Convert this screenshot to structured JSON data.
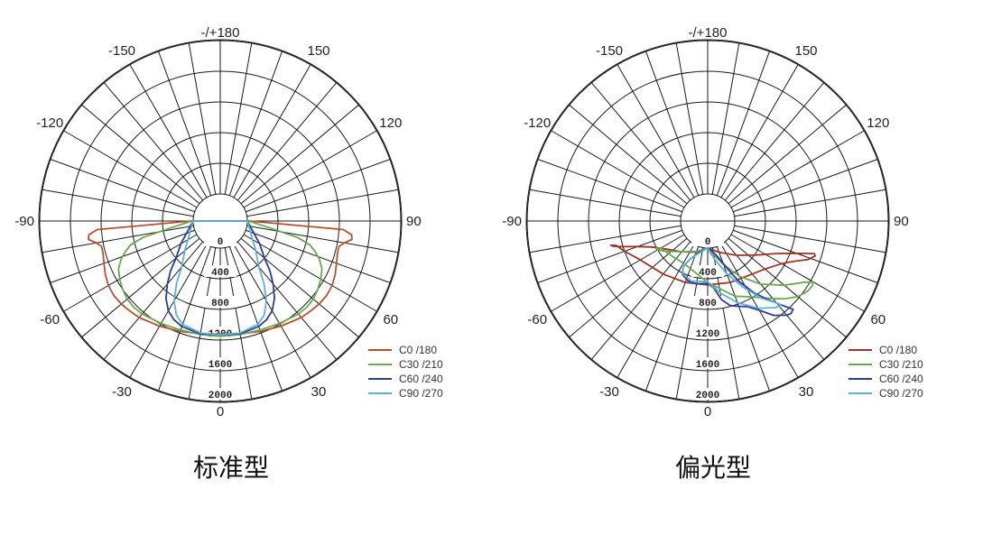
{
  "chart_data": [
    {
      "type": "polar",
      "title": "标准型",
      "angle_labels": [
        {
          "angle": 0,
          "text": "0"
        },
        {
          "angle": 30,
          "text": "30"
        },
        {
          "angle": 60,
          "text": "60"
        },
        {
          "angle": 90,
          "text": "90"
        },
        {
          "angle": 120,
          "text": "120"
        },
        {
          "angle": 150,
          "text": "150"
        },
        {
          "angle": 180,
          "text": "-/+180"
        },
        {
          "angle": -30,
          "text": "-30"
        },
        {
          "angle": -60,
          "text": "-60"
        },
        {
          "angle": -90,
          "text": "-90"
        },
        {
          "angle": -120,
          "text": "-120"
        },
        {
          "angle": -150,
          "text": "-150"
        }
      ],
      "radial_labels": [
        "0",
        "400",
        "800",
        "1200",
        "1600",
        "2000"
      ],
      "radial_max": 2000,
      "series": [
        {
          "name": "C0   /180",
          "color": "#b5532f",
          "points": [
            [
              -90,
              30
            ],
            [
              -86,
              1255
            ],
            [
              -84,
              1370
            ],
            [
              -82,
              1380
            ],
            [
              -80,
              1290
            ],
            [
              -78,
              1230
            ],
            [
              -75,
              1230
            ],
            [
              -70,
              1260
            ],
            [
              -65,
              1300
            ],
            [
              -60,
              1330
            ],
            [
              -55,
              1340
            ],
            [
              -50,
              1330
            ],
            [
              -45,
              1310
            ],
            [
              -40,
              1290
            ],
            [
              -30,
              1230
            ],
            [
              -20,
              1180
            ],
            [
              -10,
              1140
            ],
            [
              0,
              1120
            ],
            [
              10,
              1140
            ],
            [
              20,
              1180
            ],
            [
              30,
              1230
            ],
            [
              40,
              1290
            ],
            [
              45,
              1310
            ],
            [
              50,
              1330
            ],
            [
              55,
              1340
            ],
            [
              60,
              1330
            ],
            [
              65,
              1300
            ],
            [
              70,
              1260
            ],
            [
              75,
              1230
            ],
            [
              78,
              1230
            ],
            [
              80,
              1290
            ],
            [
              82,
              1380
            ],
            [
              84,
              1370
            ],
            [
              86,
              1255
            ],
            [
              90,
              30
            ]
          ]
        },
        {
          "name": "C30 /210",
          "color": "#6aa84f",
          "points": [
            [
              -90,
              20
            ],
            [
              -82,
              300
            ],
            [
              -78,
              680
            ],
            [
              -75,
              860
            ],
            [
              -72,
              950
            ],
            [
              -69,
              1030
            ],
            [
              -65,
              1110
            ],
            [
              -60,
              1160
            ],
            [
              -55,
              1200
            ],
            [
              -50,
              1230
            ],
            [
              -45,
              1240
            ],
            [
              -40,
              1230
            ],
            [
              -30,
              1190
            ],
            [
              -20,
              1160
            ],
            [
              -10,
              1150
            ],
            [
              0,
              1150
            ],
            [
              10,
              1150
            ],
            [
              20,
              1160
            ],
            [
              30,
              1190
            ],
            [
              40,
              1230
            ],
            [
              45,
              1240
            ],
            [
              50,
              1230
            ],
            [
              55,
              1200
            ],
            [
              60,
              1160
            ],
            [
              65,
              1110
            ],
            [
              69,
              1030
            ],
            [
              72,
              950
            ],
            [
              75,
              860
            ],
            [
              78,
              680
            ],
            [
              82,
              300
            ],
            [
              90,
              20
            ]
          ]
        },
        {
          "name": "C60 /240",
          "color": "#2a3f91",
          "points": [
            [
              -90,
              0
            ],
            [
              -60,
              240
            ],
            [
              -50,
              400
            ],
            [
              -45,
              560
            ],
            [
              -40,
              720
            ],
            [
              -35,
              880
            ],
            [
              -30,
              1000
            ],
            [
              -25,
              1070
            ],
            [
              -20,
              1110
            ],
            [
              -10,
              1140
            ],
            [
              0,
              1130
            ],
            [
              10,
              1140
            ],
            [
              20,
              1110
            ],
            [
              25,
              1070
            ],
            [
              30,
              1000
            ],
            [
              35,
              880
            ],
            [
              40,
              720
            ],
            [
              45,
              560
            ],
            [
              50,
              400
            ],
            [
              60,
              240
            ],
            [
              90,
              0
            ]
          ]
        },
        {
          "name": "C90 /270",
          "color": "#5fb0d8",
          "points": [
            [
              -90,
              0
            ],
            [
              -50,
              250
            ],
            [
              -40,
              430
            ],
            [
              -35,
              640
            ],
            [
              -30,
              850
            ],
            [
              -25,
              1000
            ],
            [
              -20,
              1080
            ],
            [
              -10,
              1130
            ],
            [
              0,
              1130
            ],
            [
              10,
              1130
            ],
            [
              20,
              1080
            ],
            [
              25,
              1000
            ],
            [
              30,
              850
            ],
            [
              35,
              640
            ],
            [
              40,
              430
            ],
            [
              50,
              250
            ],
            [
              90,
              0
            ]
          ]
        }
      ]
    },
    {
      "type": "polar",
      "title": "偏光型",
      "angle_labels": [
        {
          "angle": 0,
          "text": "0"
        },
        {
          "angle": 30,
          "text": "30"
        },
        {
          "angle": 60,
          "text": "60"
        },
        {
          "angle": 90,
          "text": "90"
        },
        {
          "angle": 120,
          "text": "120"
        },
        {
          "angle": 150,
          "text": "150"
        },
        {
          "angle": 180,
          "text": "-/+180"
        },
        {
          "angle": -30,
          "text": "-30"
        },
        {
          "angle": -60,
          "text": "-60"
        },
        {
          "angle": -90,
          "text": "-90"
        },
        {
          "angle": -120,
          "text": "-120"
        },
        {
          "angle": -150,
          "text": "-150"
        }
      ],
      "radial_labels": [
        "0",
        "400",
        "800",
        "1200",
        "1600",
        "2000"
      ],
      "radial_max": 2000,
      "series": [
        {
          "name": "C0   /180",
          "color": "#9e3326",
          "points": [
            [
              0,
              0
            ],
            [
              -20,
              80
            ],
            [
              -40,
              170
            ],
            [
              -55,
              290
            ],
            [
              -65,
              450
            ],
            [
              -70,
              620
            ],
            [
              -73,
              790
            ],
            [
              -75,
              920
            ],
            [
              -76,
              950
            ],
            [
              -75,
              880
            ],
            [
              -70,
              800
            ],
            [
              -60,
              660
            ],
            [
              -40,
              550
            ],
            [
              -20,
              500
            ],
            [
              0,
              480
            ],
            [
              20,
              500
            ],
            [
              40,
              550
            ],
            [
              50,
              620
            ],
            [
              60,
              760
            ],
            [
              65,
              890
            ],
            [
              69,
              1050
            ],
            [
              72,
              1120
            ],
            [
              73,
              1100
            ],
            [
              70,
              880
            ],
            [
              65,
              650
            ],
            [
              55,
              420
            ],
            [
              40,
              230
            ],
            [
              20,
              80
            ],
            [
              0,
              0
            ]
          ]
        },
        {
          "name": "C30 /210",
          "color": "#6aa84f",
          "points": [
            [
              0,
              0
            ],
            [
              -20,
              70
            ],
            [
              -40,
              170
            ],
            [
              -55,
              330
            ],
            [
              -60,
              400
            ],
            [
              -62,
              410
            ],
            [
              -60,
              350
            ],
            [
              -45,
              300
            ],
            [
              -30,
              280
            ],
            [
              -15,
              330
            ],
            [
              0,
              450
            ],
            [
              20,
              690
            ],
            [
              30,
              790
            ],
            [
              40,
              970
            ],
            [
              45,
              1080
            ],
            [
              50,
              1180
            ],
            [
              55,
              1240
            ],
            [
              58,
              1250
            ],
            [
              60,
              1240
            ],
            [
              58,
              1150
            ],
            [
              50,
              950
            ],
            [
              40,
              720
            ],
            [
              30,
              480
            ],
            [
              20,
              250
            ],
            [
              10,
              90
            ],
            [
              0,
              0
            ]
          ]
        },
        {
          "name": "C60 /240",
          "color": "#2a3f91",
          "points": [
            [
              0,
              0
            ],
            [
              -15,
              70
            ],
            [
              -25,
              200
            ],
            [
              -28,
              330
            ],
            [
              -25,
              420
            ],
            [
              -18,
              470
            ],
            [
              -10,
              480
            ],
            [
              0,
              460
            ],
            [
              5,
              520
            ],
            [
              10,
              690
            ],
            [
              15,
              790
            ],
            [
              20,
              830
            ],
            [
              25,
              880
            ],
            [
              30,
              990
            ],
            [
              35,
              1150
            ],
            [
              40,
              1250
            ],
            [
              42,
              1270
            ],
            [
              44,
              1250
            ],
            [
              42,
              1140
            ],
            [
              38,
              960
            ],
            [
              33,
              770
            ],
            [
              27,
              520
            ],
            [
              22,
              300
            ],
            [
              15,
              120
            ],
            [
              5,
              20
            ],
            [
              0,
              0
            ]
          ]
        },
        {
          "name": "C90 /270",
          "color": "#5fb0d8",
          "points": [
            [
              0,
              0
            ],
            [
              -15,
              80
            ],
            [
              -25,
              200
            ],
            [
              -28,
              330
            ],
            [
              -25,
              410
            ],
            [
              -15,
              460
            ],
            [
              0,
              440
            ],
            [
              10,
              600
            ],
            [
              20,
              780
            ],
            [
              30,
              960
            ],
            [
              38,
              1080
            ],
            [
              41,
              1100
            ],
            [
              40,
              1040
            ],
            [
              35,
              880
            ],
            [
              28,
              620
            ],
            [
              20,
              380
            ],
            [
              10,
              150
            ],
            [
              0,
              0
            ]
          ]
        }
      ]
    }
  ]
}
